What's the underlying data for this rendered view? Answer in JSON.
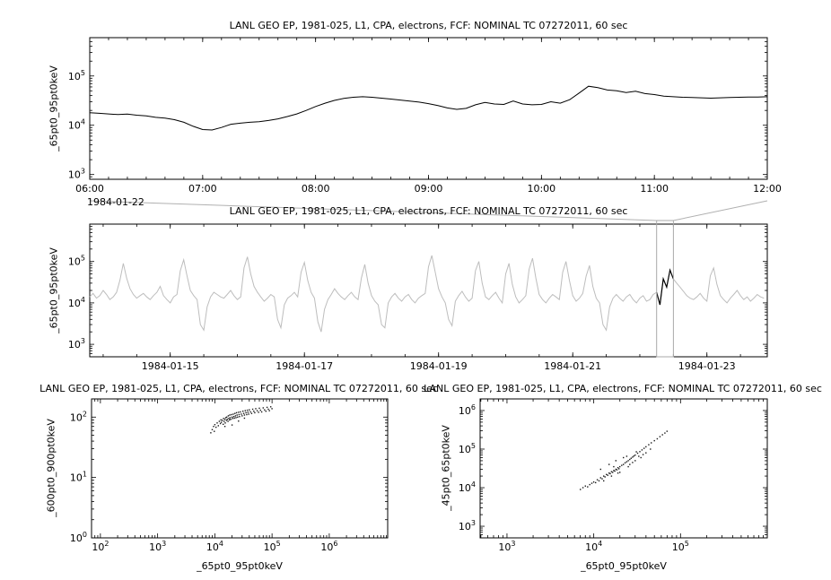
{
  "colors": {
    "frame": "#000000",
    "series": "#000000",
    "context_series": "#bdbdbd",
    "overlay": "#aaaaaa",
    "connector": "#b0b0b0"
  },
  "chart_data": [
    {
      "id": "top",
      "type": "line",
      "title": "LANL GEO EP, 1981-025, L1, CPA, electrons, FCF: NOMINAL TC 07272011, 60 sec",
      "ylabel": "_65pt0_95pt0keV",
      "color": "#000000",
      "x_axis": {
        "scale": "linear",
        "range": [
          6,
          12
        ],
        "ticks": [
          6,
          7,
          8,
          9,
          10,
          11,
          12
        ],
        "tick_labels": [
          "06:00",
          "07:00",
          "08:00",
          "09:00",
          "10:00",
          "11:00",
          "12:00"
        ],
        "minor_step": 0.16667,
        "date_label": "1984-01-22"
      },
      "y_axis": {
        "scale": "log",
        "range": [
          800,
          600000
        ],
        "ticks": [
          1000,
          10000,
          100000
        ],
        "tick_labels": [
          "10^3",
          "10^4",
          "10^5"
        ]
      },
      "x_start": 6,
      "x_step": 0.0833333,
      "values": [
        18000,
        17500,
        17000,
        16500,
        16800,
        16000,
        15500,
        14500,
        14000,
        13000,
        11500,
        9500,
        8200,
        8000,
        9000,
        10500,
        11000,
        11500,
        11800,
        12500,
        13500,
        15000,
        17000,
        20000,
        24000,
        28000,
        32000,
        35000,
        37000,
        38000,
        37000,
        35500,
        34000,
        32500,
        31000,
        29500,
        27500,
        25000,
        22500,
        21000,
        22000,
        26000,
        29000,
        27000,
        26500,
        31000,
        27000,
        26000,
        26500,
        30000,
        28000,
        33000,
        45000,
        62000,
        58000,
        52000,
        50000,
        46000,
        49000,
        44000,
        42000,
        39000,
        38000,
        37000,
        36500,
        36000,
        35500,
        36000,
        36500,
        37000,
        37500,
        37500,
        38000
      ]
    },
    {
      "id": "context",
      "type": "line",
      "title": "LANL GEO EP, 1981-025, L1, CPA, electrons, FCF: NOMINAL TC 07272011, 60 sec",
      "ylabel": "_65pt0_95pt0keV",
      "color": "#bdbdbd",
      "x_axis": {
        "scale": "linear",
        "range": [
          13.8,
          23.9
        ],
        "ticks": [
          15,
          17,
          19,
          21,
          23
        ],
        "tick_labels": [
          "1984-01-15",
          "1984-01-17",
          "1984-01-19",
          "1984-01-21",
          "1984-01-23"
        ],
        "minor_step": 0.5
      },
      "y_axis": {
        "scale": "log",
        "range": [
          500,
          800000
        ],
        "ticks": [
          1000,
          10000,
          100000
        ],
        "tick_labels": [
          "10^3",
          "10^4",
          "10^5"
        ]
      },
      "x_start": 13.8,
      "x_step": 0.05,
      "values": [
        14000,
        17000,
        13000,
        15000,
        20000,
        16000,
        12000,
        14000,
        18000,
        35000,
        90000,
        40000,
        22000,
        16000,
        13000,
        15000,
        17000,
        14000,
        12000,
        15000,
        18000,
        25000,
        15000,
        12000,
        10000,
        14000,
        16000,
        60000,
        110000,
        45000,
        20000,
        15000,
        12000,
        3000,
        2200,
        8000,
        14000,
        18000,
        16000,
        14000,
        13000,
        16000,
        20000,
        15000,
        12000,
        14000,
        70000,
        130000,
        50000,
        25000,
        18000,
        14000,
        11000,
        13000,
        16000,
        14000,
        4000,
        2500,
        9000,
        13000,
        15000,
        18000,
        14000,
        55000,
        95000,
        35000,
        18000,
        13000,
        3500,
        2000,
        7000,
        12000,
        16000,
        22000,
        17000,
        14000,
        12000,
        15000,
        18000,
        14000,
        12000,
        40000,
        85000,
        30000,
        15000,
        11000,
        9000,
        3000,
        2500,
        10000,
        14000,
        17000,
        13000,
        11000,
        14000,
        16000,
        12000,
        10000,
        13000,
        15000,
        17000,
        75000,
        140000,
        55000,
        22000,
        14000,
        10000,
        4000,
        2800,
        11000,
        15000,
        19000,
        14000,
        11000,
        13000,
        60000,
        100000,
        30000,
        14000,
        12000,
        15000,
        18000,
        13000,
        10000,
        50000,
        90000,
        28000,
        14000,
        10000,
        12000,
        15000,
        65000,
        120000,
        40000,
        16000,
        12000,
        10000,
        13000,
        16000,
        14000,
        12000,
        55000,
        100000,
        35000,
        15000,
        11000,
        13000,
        17000,
        45000,
        80000,
        25000,
        13000,
        10000,
        3000,
        2200,
        8000,
        13000,
        16000,
        13000,
        11000,
        14000,
        16000,
        12000,
        10000,
        13000,
        15000,
        11000,
        12000,
        16000,
        18000,
        9000,
        38000,
        24000,
        62000,
        38000,
        30000,
        24000,
        19000,
        15000,
        13000,
        12000,
        14000,
        17000,
        13000,
        11000,
        45000,
        70000,
        28000,
        15000,
        12000,
        10000,
        13000,
        16000,
        20000,
        15000,
        12000,
        14000,
        11000,
        13000,
        16000,
        14000,
        13000
      ],
      "highlight": {
        "x_range": [
          22.25,
          22.5
        ],
        "color": "#000000"
      },
      "selection": {
        "x_range": [
          22.25,
          22.5
        ],
        "color": "#aaaaaa",
        "connector_color": "#b0b0b0"
      }
    },
    {
      "id": "scatter_left",
      "type": "scatter",
      "title": "LANL GEO EP, 1981-025, L1, CPA, electrons, FCF: NOMINAL TC 07272011, 60 sec",
      "ylabel": "_600pt0_900pt0keV",
      "xlabel": "_65pt0_95pt0keV",
      "color": "#000000",
      "x_axis": {
        "scale": "log",
        "range": [
          70,
          10500000
        ],
        "ticks": [
          100,
          1000,
          10000,
          100000,
          1000000
        ],
        "tick_labels": [
          "10^2",
          "10^3",
          "10^4",
          "10^5",
          "10^6"
        ]
      },
      "y_axis": {
        "scale": "log",
        "range": [
          1,
          200
        ],
        "ticks": [
          1,
          10,
          100
        ],
        "tick_labels": [
          "10^0",
          "10^1",
          "10^2"
        ]
      },
      "points": [
        [
          8500,
          55
        ],
        [
          9000,
          62
        ],
        [
          9500,
          70
        ],
        [
          9800,
          58
        ],
        [
          10000,
          75
        ],
        [
          10500,
          68
        ],
        [
          11000,
          80
        ],
        [
          11500,
          72
        ],
        [
          12000,
          85
        ],
        [
          12500,
          78
        ],
        [
          12800,
          90
        ],
        [
          13000,
          82
        ],
        [
          13500,
          88
        ],
        [
          14000,
          76
        ],
        [
          14200,
          95
        ],
        [
          14500,
          85
        ],
        [
          15000,
          92
        ],
        [
          15200,
          80
        ],
        [
          15500,
          98
        ],
        [
          16000,
          88
        ],
        [
          16200,
          100
        ],
        [
          16500,
          92
        ],
        [
          17000,
          85
        ],
        [
          17200,
          105
        ],
        [
          17500,
          95
        ],
        [
          18000,
          90
        ],
        [
          18200,
          108
        ],
        [
          18500,
          98
        ],
        [
          19000,
          92
        ],
        [
          19500,
          110
        ],
        [
          20000,
          100
        ],
        [
          20500,
          95
        ],
        [
          21000,
          112
        ],
        [
          21500,
          102
        ],
        [
          22000,
          96
        ],
        [
          22500,
          115
        ],
        [
          23000,
          105
        ],
        [
          23500,
          98
        ],
        [
          24000,
          118
        ],
        [
          24500,
          108
        ],
        [
          25000,
          100
        ],
        [
          26000,
          120
        ],
        [
          26500,
          110
        ],
        [
          27000,
          102
        ],
        [
          28000,
          122
        ],
        [
          29000,
          112
        ],
        [
          30000,
          105
        ],
        [
          31000,
          125
        ],
        [
          32000,
          115
        ],
        [
          33000,
          108
        ],
        [
          34000,
          128
        ],
        [
          35000,
          118
        ],
        [
          36000,
          110
        ],
        [
          37000,
          130
        ],
        [
          38000,
          120
        ],
        [
          39000,
          112
        ],
        [
          40000,
          132
        ],
        [
          42000,
          122
        ],
        [
          44000,
          115
        ],
        [
          46000,
          135
        ],
        [
          48000,
          125
        ],
        [
          50000,
          118
        ],
        [
          52000,
          138
        ],
        [
          55000,
          128
        ],
        [
          58000,
          120
        ],
        [
          60000,
          140
        ],
        [
          63000,
          130
        ],
        [
          66000,
          122
        ],
        [
          70000,
          142
        ],
        [
          74000,
          132
        ],
        [
          78000,
          125
        ],
        [
          82000,
          145
        ],
        [
          86000,
          135
        ],
        [
          90000,
          128
        ],
        [
          95000,
          148
        ],
        [
          100000,
          138
        ],
        [
          15000,
          70
        ],
        [
          20000,
          74
        ],
        [
          26000,
          86
        ],
        [
          33000,
          96
        ]
      ]
    },
    {
      "id": "scatter_right",
      "type": "scatter",
      "title": "LANL GEO EP, 1981-025, L1, CPA, electrons, FCF: NOMINAL TC 07272011, 60 sec",
      "ylabel": "_45pt0_65pt0keV",
      "xlabel": "_65pt0_95pt0keV",
      "color": "#000000",
      "x_axis": {
        "scale": "log",
        "range": [
          490,
          1000000
        ],
        "ticks": [
          1000,
          10000,
          100000
        ],
        "tick_labels": [
          "10^3",
          "10^4",
          "10^5"
        ]
      },
      "y_axis": {
        "scale": "log",
        "range": [
          500,
          2000000
        ],
        "ticks": [
          1000,
          10000,
          100000,
          1000000
        ],
        "tick_labels": [
          "10^3",
          "10^4",
          "10^5",
          "10^6"
        ]
      },
      "points": [
        [
          7000,
          9000
        ],
        [
          7500,
          10000
        ],
        [
          8000,
          11000
        ],
        [
          8500,
          10500
        ],
        [
          9000,
          12000
        ],
        [
          9500,
          13000
        ],
        [
          10000,
          14000
        ],
        [
          10500,
          13500
        ],
        [
          11000,
          16000
        ],
        [
          11500,
          15000
        ],
        [
          12000,
          18000
        ],
        [
          12500,
          17000
        ],
        [
          13000,
          20000
        ],
        [
          13500,
          19000
        ],
        [
          14000,
          22000
        ],
        [
          14500,
          21000
        ],
        [
          15000,
          24000
        ],
        [
          15500,
          23000
        ],
        [
          16000,
          26000
        ],
        [
          16500,
          25000
        ],
        [
          17000,
          28000
        ],
        [
          17500,
          27000
        ],
        [
          18000,
          30000
        ],
        [
          18500,
          29000
        ],
        [
          19000,
          33000
        ],
        [
          19500,
          31000
        ],
        [
          20000,
          35000
        ],
        [
          21000,
          38000
        ],
        [
          22000,
          40000
        ],
        [
          23000,
          44000
        ],
        [
          24000,
          47000
        ],
        [
          25000,
          50000
        ],
        [
          26000,
          54000
        ],
        [
          27000,
          58000
        ],
        [
          28000,
          62000
        ],
        [
          29000,
          66000
        ],
        [
          30000,
          70000
        ],
        [
          32000,
          78000
        ],
        [
          34000,
          86000
        ],
        [
          36000,
          95000
        ],
        [
          38000,
          105000
        ],
        [
          40000,
          115000
        ],
        [
          43000,
          130000
        ],
        [
          46000,
          145000
        ],
        [
          50000,
          165000
        ],
        [
          54000,
          185000
        ],
        [
          58000,
          210000
        ],
        [
          62000,
          235000
        ],
        [
          66000,
          260000
        ],
        [
          70000,
          290000
        ],
        [
          12000,
          30000
        ],
        [
          15000,
          40000
        ],
        [
          18000,
          50000
        ],
        [
          20000,
          25000
        ],
        [
          25000,
          35000
        ],
        [
          30000,
          50000
        ],
        [
          16000,
          20000
        ],
        [
          22000,
          60000
        ],
        [
          28000,
          45000
        ],
        [
          35000,
          60000
        ],
        [
          40000,
          80000
        ],
        [
          45000,
          100000
        ],
        [
          13000,
          15000
        ],
        [
          17000,
          35000
        ],
        [
          19000,
          24000
        ],
        [
          24000,
          65000
        ],
        [
          26000,
          40000
        ],
        [
          31000,
          85000
        ],
        [
          33000,
          65000
        ],
        [
          37000,
          72000
        ]
      ]
    }
  ]
}
